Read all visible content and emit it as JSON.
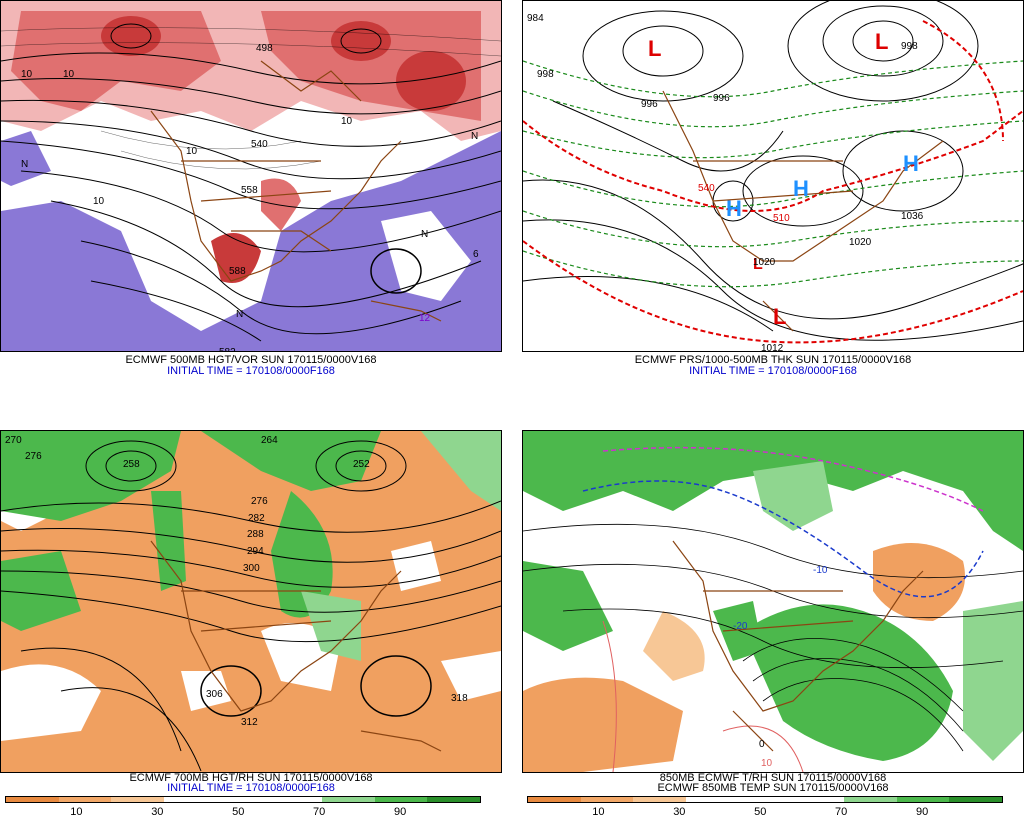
{
  "panels": {
    "p1": {
      "caption1": "ECMWF 500MB HGT/VOR SUN 170115/0000V168",
      "caption2": "INITIAL TIME = 170108/0000F168",
      "labels": [
        "10",
        "10",
        "10",
        "10",
        "N",
        "N",
        "N",
        "N",
        "558",
        "540",
        "498",
        "582",
        "588",
        "10",
        "6",
        "12"
      ],
      "colors": {
        "vort_high": "#c83a3a",
        "vort_mid": "#e07070",
        "vort_low": "#f2b6b6",
        "neg": "#8a78d6"
      }
    },
    "p2": {
      "caption1": "ECMWF PRS/1000-500MB THK SUN 170115/0000V168",
      "caption2": "INITIAL TIME = 170108/0000F168",
      "labels": [
        "996",
        "996",
        "1012",
        "1020",
        "1036",
        "1020",
        "984",
        "998",
        "998",
        "540",
        "510"
      ],
      "highs": [
        "H",
        "H",
        "H"
      ],
      "lows": [
        "L",
        "L",
        "L",
        "L"
      ],
      "colors": {
        "high": "#1e90ff",
        "low": "#dd0000"
      }
    },
    "p3": {
      "caption1": "ECMWF 700MB HGT/RH SUN 170115/0000V168",
      "caption2": "INITIAL TIME = 170108/0000F168",
      "labels": [
        "270",
        "276",
        "264",
        "276",
        "282",
        "288",
        "294",
        "300",
        "306",
        "312",
        "318",
        "258",
        "252"
      ],
      "scale": [
        "10",
        "30",
        "50",
        "70",
        "90"
      ],
      "colors": {
        "dry": "#f0a060",
        "wet": "#4cb84c"
      }
    },
    "p4": {
      "caption1": "850MB ECMWF T/RH SUN 170115/0000V168",
      "caption2": "ECMWF 850MB TEMP SUN 170115/0000V168",
      "labels": [
        "-10",
        "-20",
        "0",
        "10"
      ],
      "scale": [
        "10",
        "30",
        "50",
        "70",
        "90"
      ],
      "colors": {
        "dry": "#f0a060",
        "wet": "#4cb84c"
      }
    }
  },
  "colorbar": [
    "#e88a40",
    "#f2a868",
    "#f7c796",
    "#ffffff",
    "#ffffff",
    "#ffffff",
    "#8fd68f",
    "#4cb84c",
    "#2a8f2a"
  ]
}
